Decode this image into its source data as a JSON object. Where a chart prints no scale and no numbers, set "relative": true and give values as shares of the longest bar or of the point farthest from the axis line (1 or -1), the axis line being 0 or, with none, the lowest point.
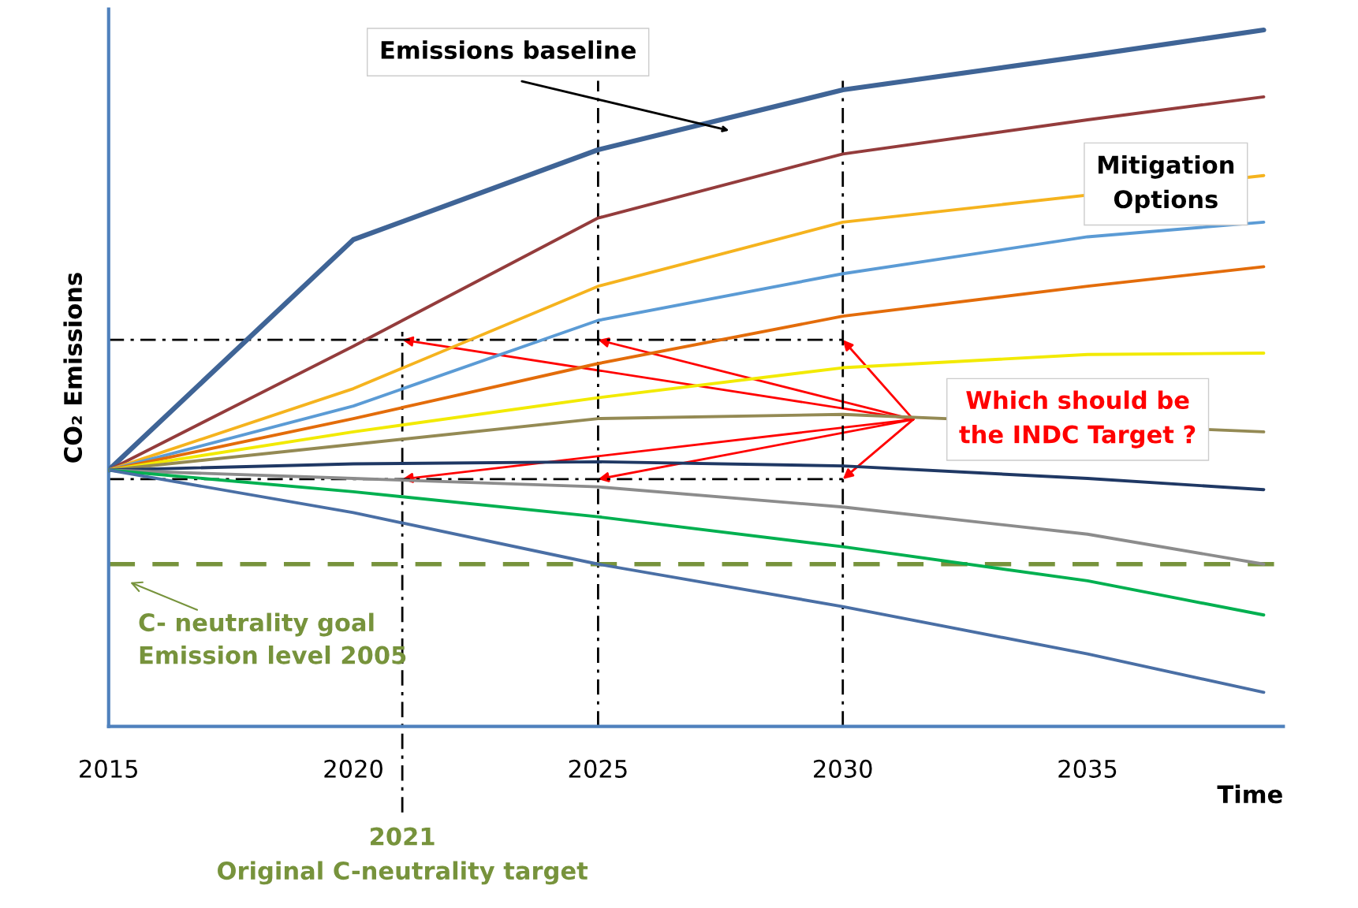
{
  "chart_data": {
    "type": "line",
    "relative": true,
    "xlabel": "Time",
    "ylabel": "CO₂ Emissions",
    "x": [
      2015,
      2020,
      2025,
      2030,
      2035,
      2038.6
    ],
    "xlim": [
      2015,
      2039
    ],
    "xticks": [
      2015,
      2020,
      2025,
      2030,
      2035
    ],
    "series": [
      {
        "color": "#3f6496",
        "values": [
          0.368,
          0.699,
          0.828,
          0.914,
          0.963,
          1.0
        ]
      },
      {
        "color": "#943c3c",
        "values": [
          0.368,
          0.546,
          0.73,
          0.822,
          0.871,
          0.904
        ]
      },
      {
        "color": "#f5b31e",
        "x": [
          2015,
          2020,
          2025,
          2030,
          2038.6
        ],
        "values": [
          0.368,
          0.485,
          0.632,
          0.724,
          0.791
        ]
      },
      {
        "color": "#5b9bd5",
        "values": [
          0.368,
          0.46,
          0.583,
          0.65,
          0.703,
          0.724
        ]
      },
      {
        "color": "#e36c0a",
        "values": [
          0.368,
          0.442,
          0.521,
          0.589,
          0.632,
          0.66
        ]
      },
      {
        "color": "#f2ea00",
        "values": [
          0.368,
          0.423,
          0.472,
          0.515,
          0.534,
          0.536
        ]
      },
      {
        "color": "#948a54",
        "x": [
          2015,
          2020,
          2025,
          2030,
          2038.6
        ],
        "values": [
          0.368,
          0.405,
          0.442,
          0.448,
          0.423
        ]
      },
      {
        "color": "#1f3864",
        "values": [
          0.368,
          0.377,
          0.38,
          0.374,
          0.356,
          0.34
        ]
      },
      {
        "color": "#8c8c8c",
        "values": [
          0.368,
          0.356,
          0.344,
          0.315,
          0.276,
          0.233
        ]
      },
      {
        "color": "#00b050",
        "values": [
          0.368,
          0.337,
          0.301,
          0.258,
          0.209,
          0.16
        ]
      },
      {
        "color": "#4a6fa5",
        "values": [
          0.368,
          0.307,
          0.233,
          0.172,
          0.104,
          0.049
        ]
      }
    ],
    "ref_lines": [
      {
        "axis": "y",
        "value": 0.233,
        "label": "C- neutrality goal\nEmission level 2005",
        "color": "#77933c",
        "line_style": "dashed"
      },
      {
        "axis": "y",
        "value": 0.555,
        "color": "#000000",
        "line_style": "dotted"
      },
      {
        "axis": "y",
        "value": 0.355,
        "color": "#000000",
        "line_style": "dotted"
      },
      {
        "axis": "x",
        "value": 2021,
        "label": "2021\nOriginal C-neutrality target",
        "color": "#000000",
        "line_style": "dotted"
      },
      {
        "axis": "x",
        "value": 2025,
        "color": "#000000",
        "line_style": "dotted"
      },
      {
        "axis": "x",
        "value": 2030,
        "color": "#000000",
        "line_style": "dotted"
      }
    ],
    "annotations": [
      "Emissions baseline",
      "Mitigation\nOptions",
      "Which should be\nthe INDC Target ?"
    ]
  }
}
